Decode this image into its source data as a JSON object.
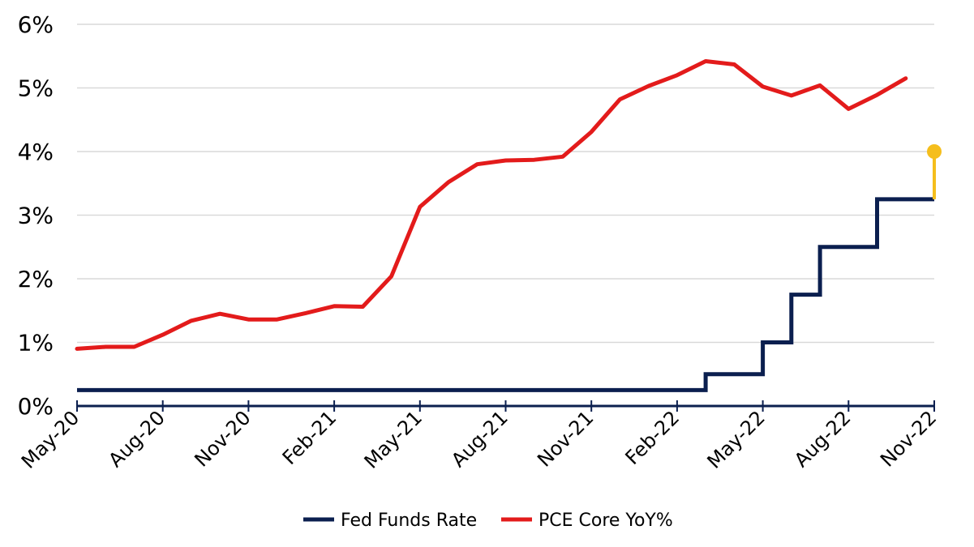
{
  "chart_data": {
    "type": "line",
    "title": "",
    "xlabel": "",
    "ylabel": "",
    "ylim": [
      0,
      6
    ],
    "yticks": [
      "0%",
      "1%",
      "2%",
      "3%",
      "4%",
      "5%",
      "6%"
    ],
    "x_tick_labels": [
      "May-20",
      "Aug-20",
      "Nov-20",
      "Feb-21",
      "May-21",
      "Aug-21",
      "Nov-21",
      "Feb-22",
      "May-22",
      "Aug-22",
      "Nov-22"
    ],
    "grid": true,
    "legend_position": "bottom",
    "series": [
      {
        "name": "Fed Funds Rate",
        "color": "#0b1f4f",
        "style": "step",
        "points": [
          {
            "x": "May-20",
            "y": 0.25
          },
          {
            "x": "Mar-22",
            "y": 0.25
          },
          {
            "x": "Mar-22",
            "y": 0.5
          },
          {
            "x": "May-22",
            "y": 0.5
          },
          {
            "x": "May-22",
            "y": 1.0
          },
          {
            "x": "Jun-22",
            "y": 1.0
          },
          {
            "x": "Jun-22",
            "y": 1.75
          },
          {
            "x": "Jul-22",
            "y": 1.75
          },
          {
            "x": "Jul-22",
            "y": 2.5
          },
          {
            "x": "Sep-22",
            "y": 2.5
          },
          {
            "x": "Sep-22",
            "y": 3.25
          },
          {
            "x": "Nov-22",
            "y": 3.25
          }
        ]
      },
      {
        "name": "PCE Core YoY%",
        "color": "#e31b1b",
        "style": "line",
        "points": [
          {
            "x": "May-20",
            "y": 0.9
          },
          {
            "x": "Jun-20",
            "y": 0.93
          },
          {
            "x": "Jul-20",
            "y": 0.93
          },
          {
            "x": "Aug-20",
            "y": 1.12
          },
          {
            "x": "Sep-20",
            "y": 1.34
          },
          {
            "x": "Oct-20",
            "y": 1.45
          },
          {
            "x": "Nov-20",
            "y": 1.36
          },
          {
            "x": "Dec-20",
            "y": 1.36
          },
          {
            "x": "Jan-21",
            "y": 1.46
          },
          {
            "x": "Feb-21",
            "y": 1.57
          },
          {
            "x": "Mar-21",
            "y": 1.56
          },
          {
            "x": "Apr-21",
            "y": 2.04
          },
          {
            "x": "May-21",
            "y": 3.13
          },
          {
            "x": "Jun-21",
            "y": 3.52
          },
          {
            "x": "Jul-21",
            "y": 3.8
          },
          {
            "x": "Aug-21",
            "y": 3.86
          },
          {
            "x": "Sep-21",
            "y": 3.87
          },
          {
            "x": "Oct-21",
            "y": 3.92
          },
          {
            "x": "Nov-21",
            "y": 4.31
          },
          {
            "x": "Dec-21",
            "y": 4.82
          },
          {
            "x": "Jan-22",
            "y": 5.03
          },
          {
            "x": "Feb-22",
            "y": 5.2
          },
          {
            "x": "Mar-22",
            "y": 5.42
          },
          {
            "x": "Apr-22",
            "y": 5.37
          },
          {
            "x": "May-22",
            "y": 5.02
          },
          {
            "x": "Jun-22",
            "y": 4.88
          },
          {
            "x": "Jul-22",
            "y": 5.04
          },
          {
            "x": "Aug-22",
            "y": 4.67
          },
          {
            "x": "Sep-22",
            "y": 4.89
          },
          {
            "x": "Oct-22",
            "y": 5.15
          }
        ]
      }
    ],
    "annotations": [
      {
        "type": "lollipop",
        "color": "#f5be1c",
        "x": "Nov-22",
        "y_from": 3.25,
        "y_to": 4.0
      }
    ]
  }
}
